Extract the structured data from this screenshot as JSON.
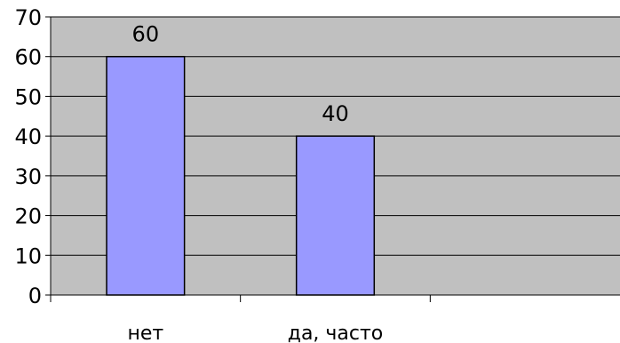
{
  "chart_data": {
    "type": "bar",
    "categories": [
      "нет",
      "да, часто",
      ""
    ],
    "values": [
      60,
      40,
      null
    ],
    "data_labels": [
      "60",
      "40",
      ""
    ],
    "title": "",
    "xlabel": "",
    "ylabel": "",
    "ylim": [
      0,
      70
    ],
    "yticks": [
      0,
      10,
      20,
      30,
      40,
      50,
      60,
      70
    ],
    "grid": true,
    "legend": "none",
    "colors": {
      "plot_background": "#c0c0c0",
      "bar_fill": "#9999ff",
      "bar_stroke": "#000000",
      "gridline": "#000000"
    }
  }
}
